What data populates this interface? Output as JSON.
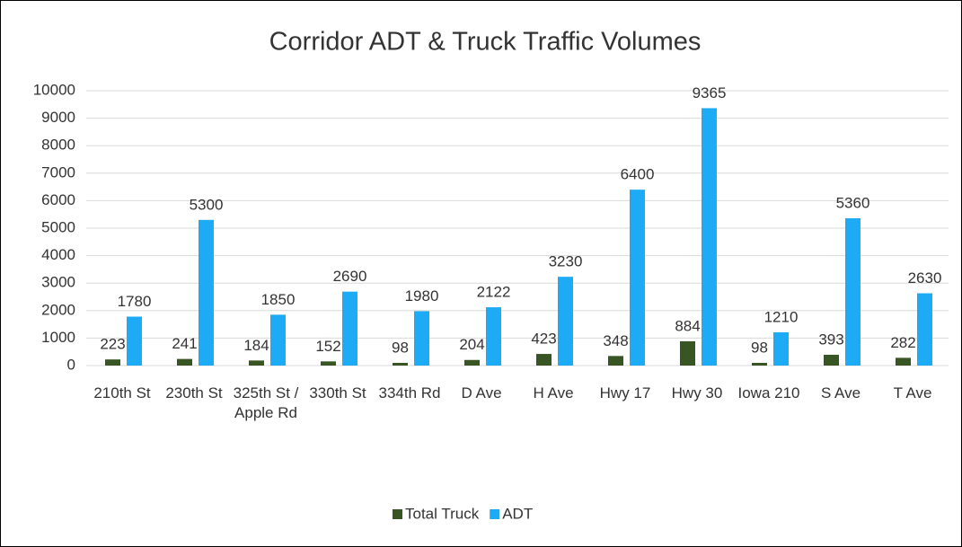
{
  "chart_data": {
    "type": "bar",
    "title": "Corridor ADT & Truck Traffic Volumes",
    "categories": [
      "210th St",
      "230th St",
      "325th St / Apple Rd",
      "330th St",
      "334th Rd",
      "D Ave",
      "H Ave",
      "Hwy 17",
      "Hwy 30",
      "Iowa 210",
      "S Ave",
      "T Ave"
    ],
    "series": [
      {
        "name": "Total Truck",
        "color": "#375623",
        "values": [
          223,
          241,
          184,
          152,
          98,
          204,
          423,
          348,
          884,
          98,
          393,
          282
        ]
      },
      {
        "name": "ADT",
        "color": "#1eabf5",
        "values": [
          1780,
          5300,
          1850,
          2690,
          1980,
          2122,
          3230,
          6400,
          9365,
          1210,
          5360,
          2630
        ]
      }
    ],
    "ylim": [
      0,
      10000
    ],
    "yticks": [
      0,
      1000,
      2000,
      3000,
      4000,
      5000,
      6000,
      7000,
      8000,
      9000,
      10000
    ],
    "grid": true,
    "legend": "bottom"
  }
}
